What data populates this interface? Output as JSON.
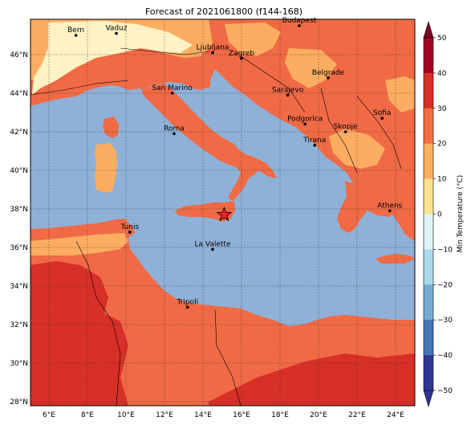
{
  "title": "Forecast of 2021061800 (f144-168)",
  "colorbar": {
    "label": "Min Temperature (°C)",
    "ticks": [
      "50",
      "40",
      "30",
      "20",
      "10",
      "0",
      "−10",
      "−20",
      "−30",
      "−40",
      "−50"
    ],
    "colors": [
      "#7f0026",
      "#b00a26",
      "#d73027",
      "#f46d43",
      "#fdae61",
      "#fee090",
      "#e0f3f8",
      "#abd9e9",
      "#74add1",
      "#4575b4",
      "#313695"
    ]
  },
  "axes": {
    "lat_labels": [
      "46°N",
      "44°N",
      "42°N",
      "40°N",
      "38°N",
      "36°N",
      "34°N",
      "32°N",
      "30°N",
      "28°N"
    ],
    "lon_labels": [
      "6°E",
      "8°E",
      "10°E",
      "12°E",
      "14°E",
      "16°E",
      "18°E",
      "20°E",
      "22°E",
      "24°E"
    ]
  },
  "cities": [
    {
      "name": "Budapest",
      "lon": 19.0,
      "lat": 47.5
    },
    {
      "name": "Bern",
      "lon": 7.4,
      "lat": 47.0
    },
    {
      "name": "Vaduz",
      "lon": 9.5,
      "lat": 47.1
    },
    {
      "name": "Ljubljana",
      "lon": 14.5,
      "lat": 46.1
    },
    {
      "name": "Zagreb",
      "lon": 16.0,
      "lat": 45.8
    },
    {
      "name": "Belgrade",
      "lon": 20.5,
      "lat": 44.8
    },
    {
      "name": "San Marino",
      "lon": 12.4,
      "lat": 44.0
    },
    {
      "name": "Sarajevo",
      "lon": 18.4,
      "lat": 43.9
    },
    {
      "name": "Sofia",
      "lon": 23.3,
      "lat": 42.7
    },
    {
      "name": "Podgorica",
      "lon": 19.3,
      "lat": 42.4
    },
    {
      "name": "Skopje",
      "lon": 21.4,
      "lat": 42.0
    },
    {
      "name": "Roma",
      "lon": 12.5,
      "lat": 41.9
    },
    {
      "name": "Tirana",
      "lon": 19.8,
      "lat": 41.3
    },
    {
      "name": "Athens",
      "lon": 23.7,
      "lat": 37.9
    },
    {
      "name": "Tunis",
      "lon": 10.2,
      "lat": 36.8
    },
    {
      "name": "La Valette",
      "lon": 14.5,
      "lat": 35.9
    },
    {
      "name": "Tripoli",
      "lon": 13.2,
      "lat": 32.9
    }
  ],
  "marker": {
    "symbol": "star-icon",
    "lon": 15.1,
    "lat": 37.7,
    "color": "#e8232a"
  },
  "colors": {
    "sea": "#8fb1d7",
    "frame": "#000000"
  }
}
